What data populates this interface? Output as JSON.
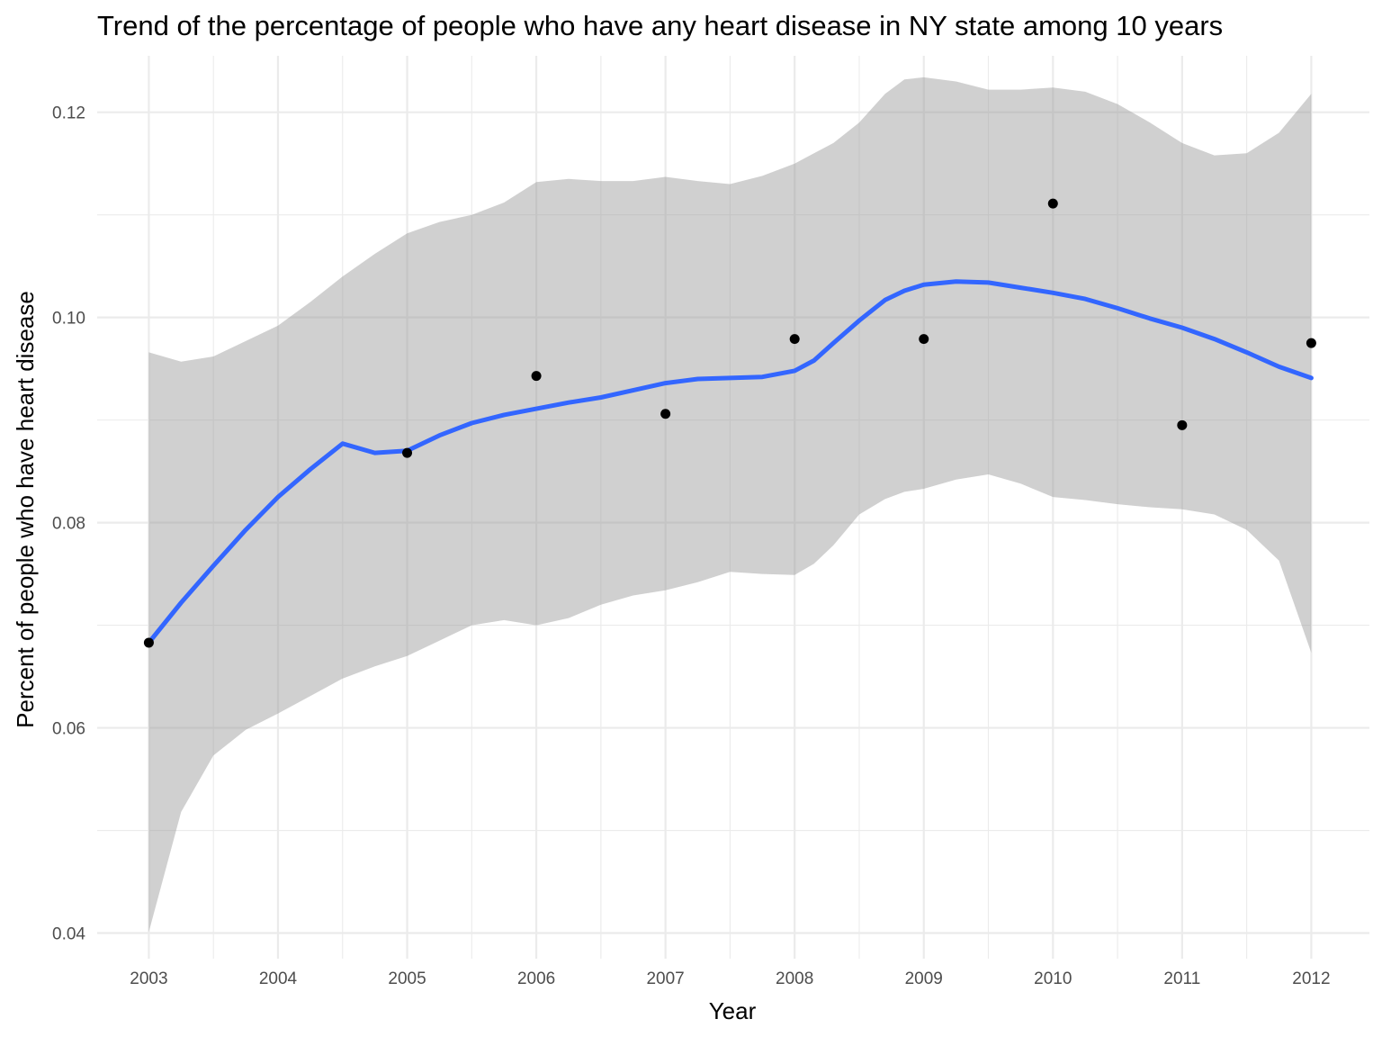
{
  "chart_data": {
    "type": "scatter",
    "title": "Trend of the percentage of people who have any heart disease in NY state among 10 years",
    "xlabel": "Year",
    "ylabel": "Percent of people who have heart disease",
    "xlim": [
      2002.6,
      2012.45
    ],
    "ylim": [
      0.0375,
      0.1255
    ],
    "x_ticks": [
      2003,
      2004,
      2005,
      2006,
      2007,
      2008,
      2009,
      2010,
      2011,
      2012
    ],
    "x_tick_labels": [
      "2003",
      "2004",
      "2005",
      "2006",
      "2007",
      "2008",
      "2009",
      "2010",
      "2011",
      "2012"
    ],
    "y_ticks": [
      0.04,
      0.06,
      0.08,
      0.1,
      0.12
    ],
    "y_tick_labels": [
      "0.04",
      "0.06",
      "0.08",
      "0.10",
      "0.12"
    ],
    "grid": true,
    "legend": "none",
    "points": [
      {
        "x": 2003,
        "y": 0.0683
      },
      {
        "x": 2005,
        "y": 0.0868
      },
      {
        "x": 2006,
        "y": 0.0943
      },
      {
        "x": 2007,
        "y": 0.0906
      },
      {
        "x": 2008,
        "y": 0.0979
      },
      {
        "x": 2009,
        "y": 0.0979
      },
      {
        "x": 2010,
        "y": 0.1111
      },
      {
        "x": 2011,
        "y": 0.0895
      },
      {
        "x": 2012,
        "y": 0.0975
      }
    ],
    "smooth": {
      "x": [
        2003,
        2003.25,
        2003.5,
        2003.75,
        2004,
        2004.25,
        2004.5,
        2004.75,
        2005,
        2005.25,
        2005.5,
        2005.75,
        2006,
        2006.25,
        2006.5,
        2006.75,
        2007,
        2007.25,
        2007.5,
        2007.75,
        2008,
        2008.15,
        2008.3,
        2008.5,
        2008.7,
        2008.85,
        2009,
        2009.25,
        2009.5,
        2009.75,
        2010,
        2010.25,
        2010.5,
        2010.75,
        2011,
        2011.25,
        2011.5,
        2011.75,
        2012
      ],
      "y": [
        0.0683,
        0.0722,
        0.0758,
        0.0793,
        0.0825,
        0.0852,
        0.0877,
        0.0868,
        0.087,
        0.0885,
        0.0897,
        0.0905,
        0.0911,
        0.0917,
        0.0922,
        0.0929,
        0.0936,
        0.094,
        0.0941,
        0.0942,
        0.0948,
        0.0958,
        0.0975,
        0.0997,
        0.1017,
        0.1026,
        0.1032,
        0.1035,
        0.1034,
        0.1029,
        0.1024,
        0.1018,
        0.1009,
        0.0999,
        0.099,
        0.0979,
        0.0966,
        0.0952,
        0.0941
      ],
      "lower": [
        0.0401,
        0.0518,
        0.0573,
        0.0598,
        0.0614,
        0.0631,
        0.0648,
        0.066,
        0.067,
        0.0685,
        0.07,
        0.0705,
        0.07,
        0.0707,
        0.072,
        0.0729,
        0.0734,
        0.0742,
        0.0752,
        0.075,
        0.0749,
        0.076,
        0.0778,
        0.0808,
        0.0823,
        0.083,
        0.0833,
        0.0842,
        0.0847,
        0.0838,
        0.0825,
        0.0822,
        0.0818,
        0.0815,
        0.0813,
        0.0808,
        0.0793,
        0.0763,
        0.0673
      ],
      "upper": [
        0.0966,
        0.0957,
        0.0962,
        0.0977,
        0.0992,
        0.1015,
        0.104,
        0.1062,
        0.1082,
        0.1093,
        0.11,
        0.1112,
        0.1132,
        0.1135,
        0.1133,
        0.1133,
        0.1137,
        0.1133,
        0.113,
        0.1138,
        0.115,
        0.116,
        0.117,
        0.119,
        0.1218,
        0.1232,
        0.1234,
        0.123,
        0.1222,
        0.1222,
        0.1224,
        0.122,
        0.1208,
        0.119,
        0.117,
        0.1158,
        0.116,
        0.118,
        0.1218
      ]
    },
    "colors": {
      "line": "#3366ff",
      "ribbon": "#999999",
      "points": "#000000",
      "grid": "#ebebeb",
      "tick_text": "#4d4d4d"
    }
  }
}
